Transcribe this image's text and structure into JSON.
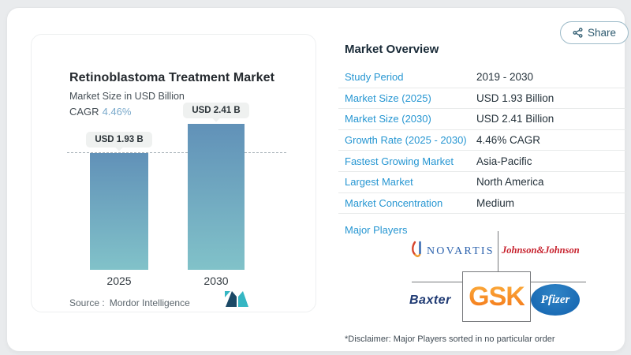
{
  "share": {
    "label": "Share"
  },
  "chart_panel": {
    "title": "Retinoblastoma Treatment Market",
    "subtitle": "Market Size in USD Billion",
    "cagr_label": "CAGR",
    "cagr_value": "4.46%",
    "source_label": "Source :",
    "source_value": "Mordor Intelligence"
  },
  "chart_data": {
    "type": "bar",
    "title": "Retinoblastoma Treatment Market",
    "ylabel": "Market Size in USD Billion",
    "categories": [
      "2025",
      "2030"
    ],
    "values": [
      1.93,
      2.41
    ],
    "bar_labels": [
      "USD 1.93 B",
      "USD 2.41 B"
    ],
    "baseline_dashed_at": 1.93,
    "legend": "none",
    "grid": "off"
  },
  "overview": {
    "heading": "Market Overview",
    "rows": [
      {
        "label": "Study Period",
        "value": "2019 - 2030"
      },
      {
        "label": "Market Size (2025)",
        "value": "USD 1.93 Billion"
      },
      {
        "label": "Market Size (2030)",
        "value": "USD 2.41 Billion"
      },
      {
        "label": "Growth Rate (2025 - 2030)",
        "value": "4.46% CAGR"
      },
      {
        "label": "Fastest Growing Market",
        "value": "Asia-Pacific"
      },
      {
        "label": "Largest Market",
        "value": "North America"
      },
      {
        "label": "Market Concentration",
        "value": "Medium"
      }
    ],
    "major_players_label": "Major Players",
    "players": {
      "novartis": "NOVARTIS",
      "jnj": "Johnson&Johnson",
      "baxter": "Baxter",
      "gsk": "GSK",
      "pfizer": "Pfizer"
    },
    "disclaimer": "*Disclaimer: Major Players sorted in no particular order"
  },
  "colors": {
    "accent_blue": "#2696d2",
    "cagr_value_blue": "#79a9cb",
    "bar_top": "#6191b8",
    "bar_bottom": "#81c2c9",
    "heading_navy": "#1a2b38",
    "value_text": "#25323b",
    "novartis_blue": "#2d63ae",
    "jnj_red": "#c7202c",
    "baxter_navy": "#1f3a73",
    "gsk_orange": "#f58220",
    "pfizer_blue": "#1b6cb5",
    "mordor_navy": "#1b4966",
    "mordor_teal": "#35b6c3"
  }
}
